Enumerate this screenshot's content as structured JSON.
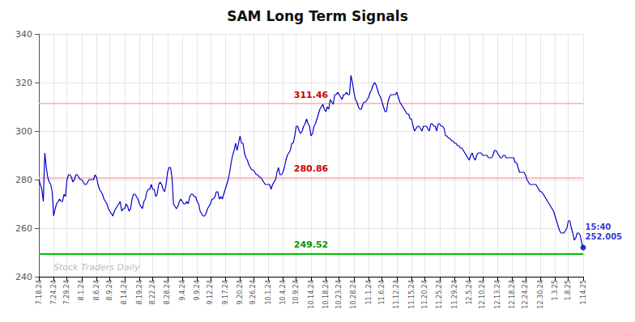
{
  "chart_data": {
    "type": "line",
    "title": "SAM Long Term Signals",
    "color": "#0000cc",
    "grid": true,
    "ylim": [
      240,
      340
    ],
    "yticks": [
      240,
      260,
      280,
      300,
      320,
      340
    ],
    "categories": [
      "7.18.24",
      null,
      null,
      null,
      null,
      null,
      null,
      null,
      null,
      null,
      "7.24.24",
      null,
      null,
      null,
      null,
      null,
      null,
      null,
      null,
      "7.29.24",
      null,
      null,
      null,
      null,
      null,
      null,
      null,
      null,
      null,
      "8.1.24",
      null,
      null,
      null,
      null,
      null,
      null,
      null,
      null,
      null,
      "8.6.24",
      null,
      null,
      null,
      null,
      null,
      null,
      null,
      null,
      "8.9.24",
      null,
      null,
      null,
      null,
      null,
      null,
      null,
      null,
      null,
      "8.14.24",
      null,
      null,
      null,
      null,
      null,
      null,
      null,
      null,
      null,
      "8.19.24",
      null,
      null,
      null,
      null,
      null,
      null,
      null,
      null,
      "8.22.24",
      null,
      null,
      null,
      null,
      null,
      null,
      null,
      null,
      null,
      "8.28.24",
      null,
      null,
      null,
      null,
      null,
      null,
      null,
      null,
      null,
      "9.4.24",
      null,
      null,
      null,
      null,
      null,
      null,
      null,
      null,
      null,
      "9.9.24",
      null,
      null,
      null,
      null,
      null,
      null,
      null,
      null,
      "9.12.24",
      null,
      null,
      null,
      null,
      null,
      null,
      null,
      null,
      null,
      "9.17.24",
      null,
      null,
      null,
      null,
      null,
      null,
      null,
      null,
      null,
      "9.20.24",
      null,
      null,
      null,
      null,
      null,
      null,
      null,
      null,
      "9.26.24",
      null,
      null,
      null,
      null,
      null,
      null,
      null,
      null,
      null,
      "10.1.24",
      null,
      null,
      null,
      null,
      null,
      null,
      null,
      null,
      null,
      "10.4.24",
      null,
      null,
      null,
      null,
      null,
      null,
      null,
      null,
      "10.9.24",
      null,
      null,
      null,
      null,
      null,
      null,
      null,
      null,
      null,
      "10.14.24",
      null,
      null,
      null,
      null,
      null,
      null,
      null,
      null,
      null,
      "10.18.24",
      null,
      null,
      null,
      null,
      null,
      null,
      null,
      null,
      "10.23.24",
      null,
      null,
      null,
      null,
      null,
      null,
      null,
      null,
      null,
      "10.28.24",
      null,
      null,
      null,
      null,
      null,
      null,
      null,
      null,
      null,
      "11.1.24",
      null,
      null,
      null,
      null,
      null,
      null,
      null,
      null,
      "11.6.24",
      null,
      null,
      null,
      null,
      null,
      null,
      null,
      null,
      null,
      "11.12.24",
      null,
      null,
      null,
      null,
      null,
      null,
      null,
      null,
      null,
      "11.15.24",
      null,
      null,
      null,
      null,
      null,
      null,
      null,
      null,
      "11.20.24",
      null,
      null,
      null,
      null,
      null,
      null,
      null,
      null,
      null,
      "11.25.24",
      null,
      null,
      null,
      null,
      null,
      null,
      null,
      null,
      null,
      "11.29.24",
      null,
      null,
      null,
      null,
      null,
      null,
      null,
      null,
      null,
      "12.5.24",
      null,
      null,
      null,
      null,
      null,
      null,
      null,
      null,
      "12.10.24",
      null,
      null,
      null,
      null,
      null,
      null,
      null,
      null,
      null,
      "12.13.24",
      null,
      null,
      null,
      null,
      null,
      null,
      null,
      null,
      null,
      "12.18.24",
      null,
      null,
      null,
      null,
      null,
      null,
      null,
      null,
      "12.24.24",
      null,
      null,
      null,
      null,
      null,
      null,
      null,
      null,
      null,
      "12.30.24",
      null,
      null,
      null,
      null,
      null,
      null,
      null,
      null,
      null,
      "1.3.25",
      null,
      null,
      null,
      null,
      null,
      null,
      null,
      null,
      "1.8.25",
      null,
      null,
      null,
      null,
      null,
      null,
      null,
      null,
      null,
      "1.14.25"
    ],
    "values": [
      280,
      278,
      276,
      271,
      291,
      285,
      281,
      279,
      278,
      275,
      265,
      268,
      270,
      271,
      272,
      271,
      271,
      274,
      273,
      280,
      282,
      282,
      281,
      279,
      280,
      282,
      282,
      281,
      280,
      280,
      279,
      278,
      278,
      279,
      280,
      280,
      280,
      280,
      282,
      281,
      278,
      276,
      275,
      274,
      272,
      271,
      270,
      268,
      267,
      266,
      265,
      267,
      268,
      269,
      270,
      271,
      267,
      268,
      268,
      270,
      269,
      267,
      268,
      272,
      274,
      274,
      273,
      272,
      270,
      269,
      268,
      271,
      272,
      275,
      276,
      276,
      278,
      276,
      276,
      273,
      274,
      278,
      279,
      278,
      276,
      275,
      278,
      283,
      285,
      285,
      281,
      270,
      269,
      268,
      269,
      271,
      272,
      271,
      270,
      270,
      271,
      270,
      273,
      274,
      274,
      273,
      273,
      271,
      270,
      267,
      266,
      265,
      265,
      266,
      268,
      269,
      270,
      272,
      272,
      273,
      275,
      275,
      272,
      273,
      272,
      274,
      276,
      278,
      280,
      283,
      287,
      290,
      292,
      295,
      292,
      295,
      298,
      295,
      295,
      291,
      289,
      288,
      286,
      285,
      284,
      284,
      283,
      282,
      282,
      281,
      281,
      280,
      279,
      278,
      278,
      278,
      278,
      276,
      278,
      279,
      280,
      283,
      285,
      282,
      282,
      283,
      285,
      288,
      290,
      291,
      292,
      295,
      295,
      298,
      302,
      302,
      300,
      299,
      300,
      302,
      303,
      305,
      303,
      302,
      298,
      299,
      302,
      303,
      305,
      307,
      309,
      310,
      311,
      309,
      308,
      310,
      309,
      313,
      312,
      311,
      315,
      315,
      316,
      315,
      314,
      313,
      315,
      315,
      316,
      315,
      315,
      323,
      320,
      316,
      313,
      312,
      310,
      309,
      309,
      311,
      312,
      312,
      313,
      314,
      316,
      317,
      319,
      320,
      319,
      317,
      315,
      314,
      312,
      310,
      308,
      308,
      312,
      314,
      315,
      315,
      315,
      315,
      316,
      314,
      312,
      311,
      310,
      309,
      308,
      307,
      307,
      305,
      305,
      302,
      300,
      301,
      302,
      302,
      301,
      300,
      302,
      302,
      302,
      301,
      300,
      303,
      303,
      302,
      302,
      300,
      303,
      303,
      302,
      302,
      301,
      298,
      298,
      297,
      297,
      296,
      296,
      295,
      295,
      294,
      294,
      293,
      293,
      292,
      291,
      290,
      289,
      288,
      290,
      291,
      289,
      288,
      290,
      291,
      291,
      291,
      290,
      290,
      290,
      290,
      289,
      289,
      289,
      290,
      292,
      292,
      291,
      290,
      289,
      289,
      290,
      290,
      289,
      289,
      289,
      289,
      289,
      289,
      287,
      287,
      285,
      283,
      283,
      283,
      283,
      282,
      280,
      279,
      278,
      278,
      278,
      278,
      278,
      277,
      276,
      275,
      275,
      274,
      273,
      272,
      271,
      270,
      269,
      268,
      267,
      265,
      263,
      261,
      259,
      258,
      258,
      258,
      259,
      260,
      263,
      263,
      260,
      258,
      255,
      256,
      258,
      258,
      257,
      254,
      252
    ],
    "annotations": [
      {
        "type": "hline",
        "y": 311.46,
        "text": "311.46",
        "color": "#ffaaaa",
        "label_color": "#cc0000"
      },
      {
        "type": "hline",
        "y": 280.86,
        "text": "280.86",
        "color": "#ffaaaa",
        "label_color": "#cc0000"
      },
      {
        "type": "hline",
        "y": 249.52,
        "text": "249.52",
        "color": "#00bb00",
        "label_color": "#009900"
      },
      {
        "type": "end_label",
        "text": "15:40\n252.005"
      }
    ],
    "watermark": {
      "text": "Stock Traders Daily",
      "color": "#bbbbbb"
    }
  }
}
